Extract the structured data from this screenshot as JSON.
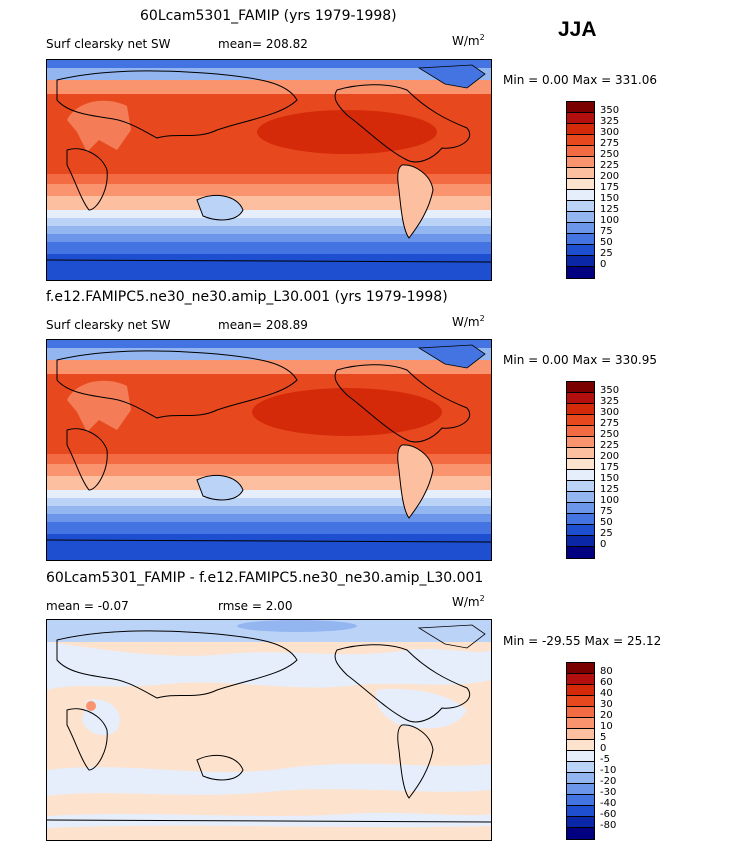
{
  "season": "JJA",
  "panels": [
    {
      "title": "60Lcam5301_FAMIP (yrs 1979-1998)",
      "left_label": "Surf clearsky net SW",
      "stat_label": "mean=  208.82",
      "units": "W/m",
      "units_exp": "2",
      "minmax": "Min =    0.00  Max = 331.06",
      "colorbar": {
        "labels": [
          "350",
          "325",
          "300",
          "275",
          "250",
          "225",
          "200",
          "175",
          "150",
          "125",
          "100",
          "75",
          "50",
          "25",
          "0"
        ],
        "colors": [
          "#7a0000",
          "#b40f0f",
          "#d42a0a",
          "#e8481e",
          "#f36b42",
          "#f9946f",
          "#fcbf9f",
          "#fde2cd",
          "#e6eefc",
          "#bcd3f8",
          "#93b6f1",
          "#6b96ea",
          "#4474e2",
          "#1e4fd0",
          "#0a27a8",
          "#000080"
        ]
      }
    },
    {
      "title": "f.e12.FAMIPC5.ne30_ne30.amip_L30.001 (yrs 1979-1998)",
      "left_label": "Surf clearsky net SW",
      "stat_label": "mean=  208.89",
      "units": "W/m",
      "units_exp": "2",
      "minmax": "Min =    0.00  Max = 330.95",
      "colorbar": {
        "labels": [
          "350",
          "325",
          "300",
          "275",
          "250",
          "225",
          "200",
          "175",
          "150",
          "125",
          "100",
          "75",
          "50",
          "25",
          "0"
        ],
        "colors": [
          "#7a0000",
          "#b40f0f",
          "#d42a0a",
          "#e8481e",
          "#f36b42",
          "#f9946f",
          "#fcbf9f",
          "#fde2cd",
          "#e6eefc",
          "#bcd3f8",
          "#93b6f1",
          "#6b96ea",
          "#4474e2",
          "#1e4fd0",
          "#0a27a8",
          "#000080"
        ]
      }
    },
    {
      "title": "60Lcam5301_FAMIP - f.e12.FAMIPC5.ne30_ne30.amip_L30.001",
      "left_label": "mean =   -0.07",
      "stat_label": "rmse =    2.00",
      "units": "W/m",
      "units_exp": "2",
      "minmax": "Min = -29.55  Max =  25.12",
      "colorbar": {
        "labels": [
          "80",
          "60",
          "40",
          "30",
          "20",
          "10",
          "5",
          "0",
          "-5",
          "-10",
          "-20",
          "-30",
          "-40",
          "-60",
          "-80"
        ],
        "colors": [
          "#7a0000",
          "#b40f0f",
          "#d42a0a",
          "#e8481e",
          "#f36b42",
          "#f9946f",
          "#fcbf9f",
          "#fde2cd",
          "#e6eefc",
          "#bcd3f8",
          "#93b6f1",
          "#6b96ea",
          "#4474e2",
          "#1e4fd0",
          "#0a27a8",
          "#000080"
        ]
      }
    }
  ]
}
